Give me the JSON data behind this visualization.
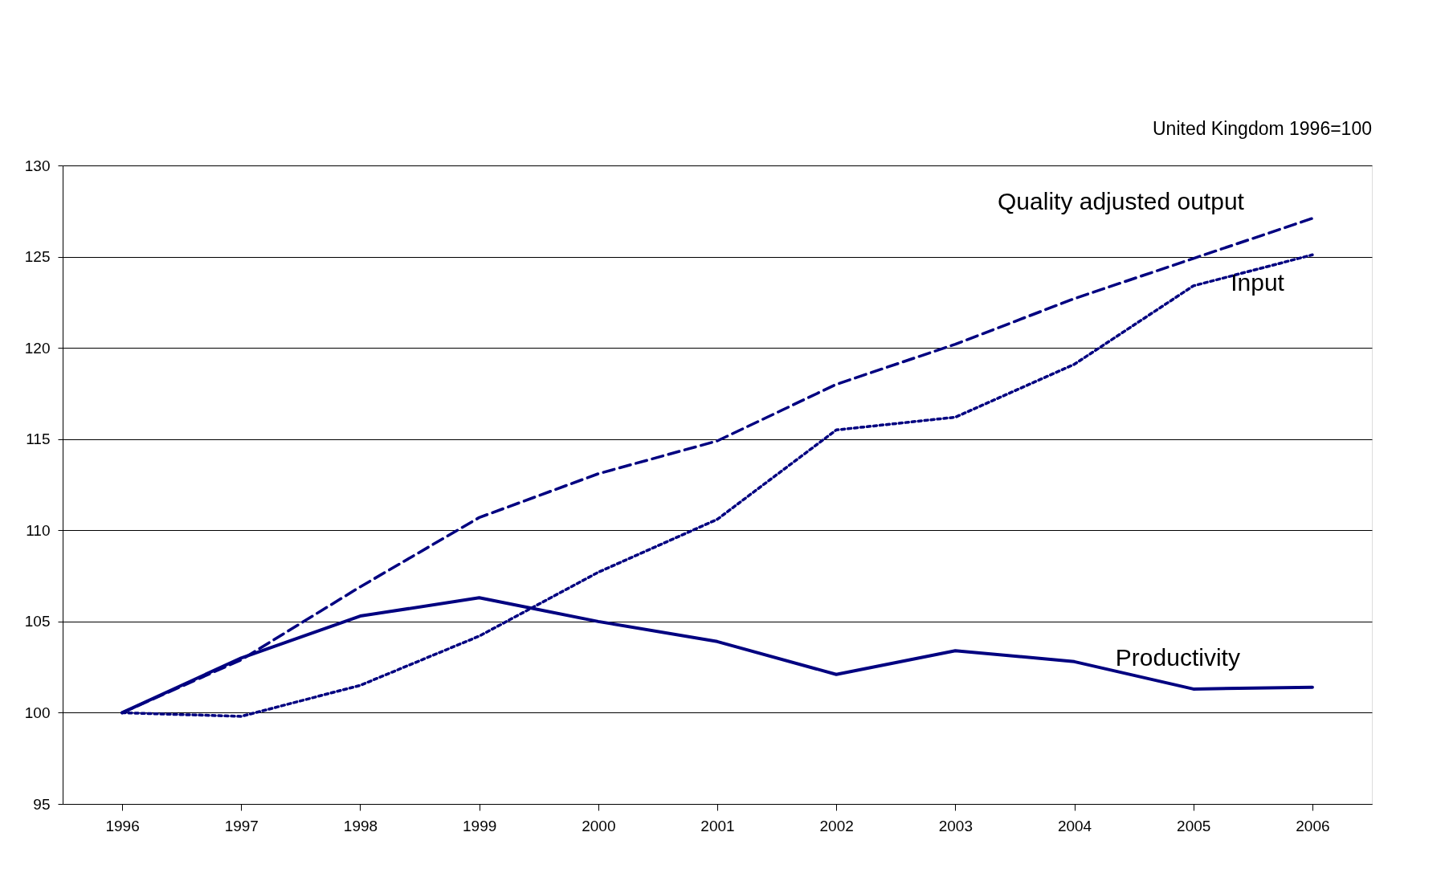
{
  "chart_data": {
    "type": "line",
    "title": "United Kingdom 1996=100",
    "categories": [
      "1996",
      "1997",
      "1998",
      "1999",
      "2000",
      "2001",
      "2002",
      "2003",
      "2004",
      "2005",
      "2006"
    ],
    "series": [
      {
        "name": "Quality adjusted output",
        "color": "#000080",
        "line_style": "dashed",
        "values": [
          100,
          102.9,
          106.9,
          110.7,
          113.1,
          114.9,
          118.0,
          120.2,
          122.7,
          124.9,
          127.1
        ]
      },
      {
        "name": "Input",
        "color": "#000080",
        "line_style": "dotted",
        "values": [
          100,
          99.8,
          101.5,
          104.2,
          107.7,
          110.6,
          115.5,
          116.2,
          119.1,
          123.4,
          125.1
        ]
      },
      {
        "name": "Productivity",
        "color": "#000080",
        "line_style": "solid",
        "values": [
          100,
          103.0,
          105.3,
          106.3,
          105.0,
          103.9,
          102.1,
          103.4,
          102.8,
          101.3,
          101.4
        ]
      }
    ],
    "ylim": [
      95,
      130
    ],
    "yticks": [
      95,
      100,
      105,
      110,
      115,
      120,
      125,
      130
    ],
    "grid": "y",
    "marker": "none"
  }
}
